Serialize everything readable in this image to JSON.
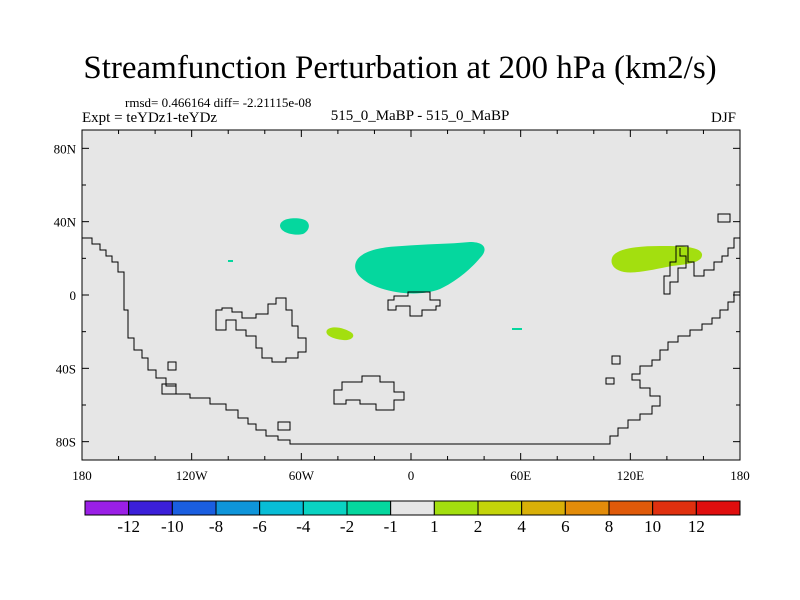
{
  "chart_data": {
    "type": "map-contour",
    "title": "Streamfunction Perturbation at 200 hPa (km2/s)",
    "stats_line": "rmsd= 0.466164 diff= -2.21115e-08",
    "experiment": "Expt = teYDz1-teYDz",
    "cases": "515_0_MaBP - 515_0_MaBP",
    "season": "DJF",
    "xlim": [
      -180,
      180
    ],
    "ylim": [
      -90,
      90
    ],
    "x_ticks": [
      {
        "value": -180,
        "label": "180"
      },
      {
        "value": -120,
        "label": "120W"
      },
      {
        "value": -60,
        "label": "60W"
      },
      {
        "value": 0,
        "label": "0"
      },
      {
        "value": 60,
        "label": "60E"
      },
      {
        "value": 120,
        "label": "120E"
      },
      {
        "value": 180,
        "label": "180"
      }
    ],
    "y_ticks": [
      {
        "value": 80,
        "label": "80N"
      },
      {
        "value": 40,
        "label": "40N"
      },
      {
        "value": 0,
        "label": "0"
      },
      {
        "value": -40,
        "label": "40S"
      },
      {
        "value": -80,
        "label": "80S"
      }
    ],
    "colorbar": {
      "levels": [
        "-12",
        "-10",
        "-8",
        "-6",
        "-4",
        "-2",
        "-1",
        "1",
        "2",
        "4",
        "6",
        "8",
        "10",
        "12"
      ],
      "colors": [
        "#9a1fe6",
        "#3b1fd9",
        "#1a5ee0",
        "#0f95da",
        "#08bdd6",
        "#0ad3c2",
        "#05d79e",
        "#e6e6e6",
        "#a3df0f",
        "#c4d40a",
        "#d9b008",
        "#e38c0a",
        "#e05a0a",
        "#e0300f",
        "#e00e0e"
      ]
    },
    "anomalies": [
      {
        "lon": -67,
        "lat": 37,
        "level": "-2",
        "color": "#05d79e"
      },
      {
        "lon": -17,
        "lat": 14,
        "level": "-2",
        "color": "#05d79e"
      },
      {
        "lon": -101,
        "lat": 18,
        "level": "-2",
        "color": "#05d79e"
      },
      {
        "lon": 60,
        "lat": -18,
        "level": "-2",
        "color": "#05d79e"
      },
      {
        "lon": -38,
        "lat": -21,
        "level": "2",
        "color": "#a3df0f"
      },
      {
        "lon": 140,
        "lat": 19,
        "level": "2",
        "color": "#a3df0f"
      }
    ]
  }
}
